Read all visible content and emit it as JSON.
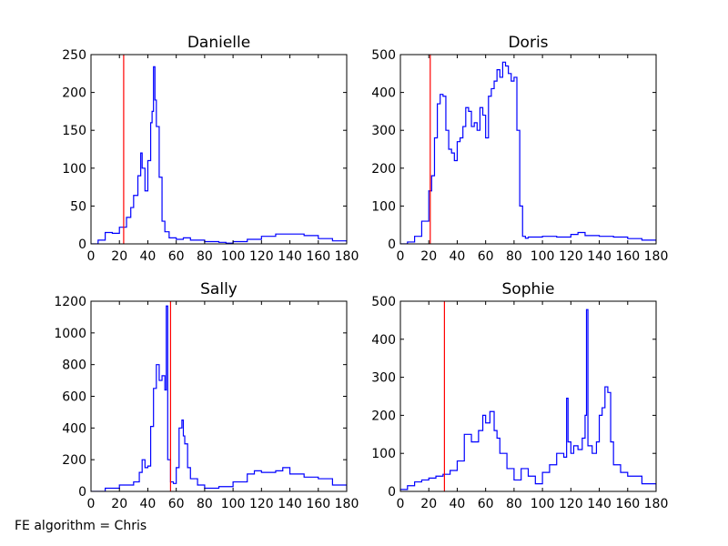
{
  "footer": {
    "text": "FE algorithm = Chris"
  },
  "colors": {
    "line": "#0000ff",
    "marker": "#ff0000",
    "axis": "#000000",
    "background": "#ffffff"
  },
  "chart_data": [
    {
      "type": "line",
      "title": "Danielle",
      "xlim": [
        0,
        180
      ],
      "ylim": [
        0,
        250
      ],
      "xticks": [
        0,
        20,
        40,
        60,
        80,
        100,
        120,
        140,
        160,
        180
      ],
      "yticks": [
        0,
        50,
        100,
        150,
        200,
        250
      ],
      "vline": 23,
      "x": [
        0,
        5,
        10,
        15,
        20,
        25,
        28,
        30,
        33,
        35,
        36,
        38,
        40,
        42,
        43,
        44,
        45,
        46,
        48,
        50,
        52,
        55,
        60,
        65,
        70,
        80,
        90,
        95,
        100,
        110,
        120,
        130,
        140,
        150,
        160,
        170,
        180
      ],
      "values": [
        0,
        5,
        15,
        14,
        22,
        35,
        48,
        64,
        90,
        120,
        100,
        70,
        110,
        160,
        175,
        234,
        190,
        155,
        88,
        30,
        16,
        8,
        6,
        8,
        5,
        3,
        2,
        1,
        3,
        6,
        10,
        13,
        13,
        11,
        7,
        4,
        2
      ]
    },
    {
      "type": "line",
      "title": "Doris",
      "xlim": [
        0,
        180
      ],
      "ylim": [
        0,
        500
      ],
      "xticks": [
        0,
        20,
        40,
        60,
        80,
        100,
        120,
        140,
        160,
        180
      ],
      "yticks": [
        0,
        100,
        200,
        300,
        400,
        500
      ],
      "vline": 21,
      "x": [
        0,
        5,
        10,
        15,
        20,
        22,
        24,
        26,
        28,
        30,
        32,
        34,
        36,
        38,
        40,
        42,
        44,
        46,
        48,
        50,
        52,
        54,
        56,
        58,
        60,
        62,
        64,
        66,
        68,
        70,
        72,
        74,
        76,
        78,
        80,
        82,
        84,
        86,
        88,
        90,
        100,
        110,
        120,
        125,
        130,
        140,
        150,
        160,
        170,
        180
      ],
      "values": [
        0,
        5,
        20,
        60,
        140,
        180,
        280,
        370,
        395,
        390,
        300,
        250,
        240,
        220,
        270,
        280,
        310,
        360,
        350,
        310,
        320,
        300,
        360,
        340,
        280,
        390,
        410,
        430,
        460,
        440,
        480,
        470,
        450,
        430,
        440,
        300,
        100,
        20,
        15,
        18,
        20,
        18,
        25,
        30,
        22,
        20,
        18,
        14,
        10,
        6
      ]
    },
    {
      "type": "line",
      "title": "Sally",
      "xlim": [
        0,
        180
      ],
      "ylim": [
        0,
        1200
      ],
      "xticks": [
        0,
        20,
        40,
        60,
        80,
        100,
        120,
        140,
        160,
        180
      ],
      "yticks": [
        0,
        200,
        400,
        600,
        800,
        1000,
        1200
      ],
      "vline": 56,
      "x": [
        0,
        10,
        20,
        30,
        34,
        36,
        38,
        40,
        42,
        44,
        46,
        48,
        50,
        52,
        53,
        54,
        56,
        58,
        60,
        62,
        64,
        65,
        66,
        68,
        70,
        75,
        80,
        90,
        100,
        110,
        115,
        120,
        130,
        135,
        140,
        150,
        160,
        170,
        180
      ],
      "values": [
        0,
        20,
        40,
        60,
        120,
        200,
        150,
        160,
        410,
        650,
        800,
        700,
        730,
        640,
        1170,
        200,
        60,
        50,
        150,
        400,
        450,
        350,
        300,
        150,
        80,
        40,
        20,
        30,
        60,
        110,
        130,
        120,
        130,
        150,
        110,
        90,
        80,
        40,
        10
      ]
    },
    {
      "type": "line",
      "title": "Sophie",
      "xlim": [
        0,
        180
      ],
      "ylim": [
        0,
        500
      ],
      "xticks": [
        0,
        20,
        40,
        60,
        80,
        100,
        120,
        140,
        160,
        180
      ],
      "yticks": [
        0,
        100,
        200,
        300,
        400,
        500
      ],
      "vline": 31,
      "x": [
        0,
        5,
        10,
        15,
        20,
        25,
        30,
        35,
        40,
        45,
        50,
        55,
        58,
        60,
        63,
        66,
        68,
        70,
        75,
        80,
        85,
        90,
        95,
        100,
        105,
        110,
        115,
        117,
        118,
        120,
        122,
        125,
        128,
        130,
        131,
        132,
        135,
        138,
        140,
        142,
        144,
        146,
        148,
        150,
        155,
        160,
        170,
        180
      ],
      "values": [
        5,
        15,
        25,
        30,
        35,
        40,
        45,
        55,
        80,
        150,
        130,
        160,
        200,
        180,
        210,
        160,
        140,
        100,
        60,
        30,
        60,
        40,
        20,
        50,
        70,
        100,
        90,
        245,
        130,
        100,
        120,
        110,
        140,
        200,
        478,
        120,
        100,
        130,
        200,
        220,
        275,
        260,
        130,
        70,
        50,
        40,
        20,
        5
      ]
    }
  ]
}
